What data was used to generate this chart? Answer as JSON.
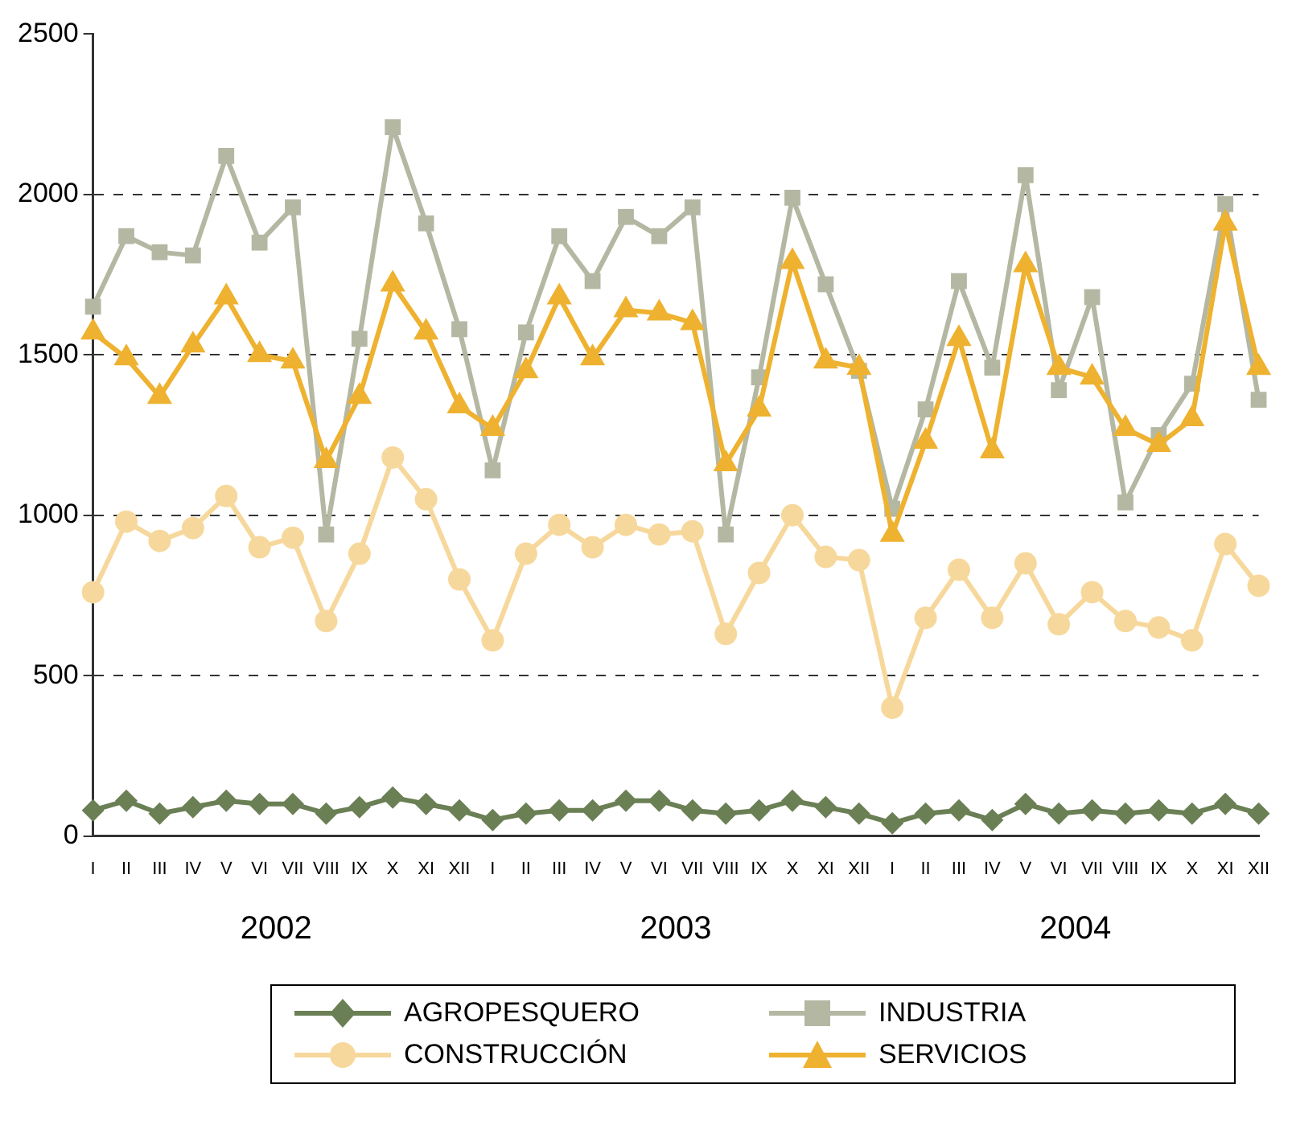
{
  "chart_data": {
    "type": "line",
    "categories": [
      "I",
      "II",
      "III",
      "IV",
      "V",
      "VI",
      "VII",
      "VIII",
      "IX",
      "X",
      "XI",
      "XII",
      "I",
      "II",
      "III",
      "IV",
      "V",
      "VI",
      "VII",
      "VIII",
      "IX",
      "X",
      "XI",
      "XII",
      "I",
      "II",
      "III",
      "IV",
      "V",
      "VI",
      "VII",
      "VIII",
      "IX",
      "X",
      "XI",
      "XII"
    ],
    "annotations": [
      "2002",
      "2003",
      "2004"
    ],
    "ylim": [
      0,
      2500
    ],
    "yticks": [
      0,
      500,
      1000,
      1500,
      2000,
      2500
    ],
    "grid": "y",
    "legend": "bottom",
    "series": [
      {
        "name": "AGROPESQUERO",
        "color": "#6b7f55",
        "marker": "diamond",
        "values": [
          80,
          110,
          70,
          90,
          110,
          100,
          100,
          70,
          90,
          120,
          100,
          80,
          50,
          70,
          80,
          80,
          110,
          110,
          80,
          70,
          80,
          110,
          90,
          70,
          40,
          70,
          80,
          50,
          100,
          70,
          80,
          70,
          80,
          70,
          100,
          70
        ]
      },
      {
        "name": "INDUSTRIA",
        "color": "#b4b8a3",
        "marker": "square",
        "values": [
          1650,
          1870,
          1820,
          1810,
          2120,
          1850,
          1960,
          940,
          1550,
          2210,
          1910,
          1580,
          1140,
          1570,
          1870,
          1730,
          1930,
          1870,
          1960,
          940,
          1430,
          1990,
          1720,
          1450,
          1020,
          1330,
          1730,
          1460,
          2060,
          1390,
          1680,
          1040,
          1250,
          1410,
          1970,
          1360
        ]
      },
      {
        "name": "CONSTRUCCIÓN",
        "color": "#f7d89c",
        "marker": "circle",
        "values": [
          760,
          980,
          920,
          960,
          1060,
          900,
          930,
          670,
          880,
          1180,
          1050,
          800,
          610,
          880,
          970,
          900,
          970,
          940,
          950,
          630,
          820,
          1000,
          870,
          860,
          400,
          680,
          830,
          680,
          850,
          660,
          760,
          670,
          650,
          610,
          910,
          780
        ]
      },
      {
        "name": "SERVICIOS",
        "color": "#eeb230",
        "marker": "triangle",
        "values": [
          1570,
          1490,
          1370,
          1530,
          1680,
          1500,
          1480,
          1170,
          1370,
          1720,
          1570,
          1340,
          1270,
          1450,
          1680,
          1490,
          1640,
          1630,
          1600,
          1160,
          1330,
          1790,
          1480,
          1460,
          940,
          1230,
          1550,
          1200,
          1780,
          1460,
          1430,
          1270,
          1220,
          1300,
          1910,
          1460
        ]
      }
    ]
  }
}
